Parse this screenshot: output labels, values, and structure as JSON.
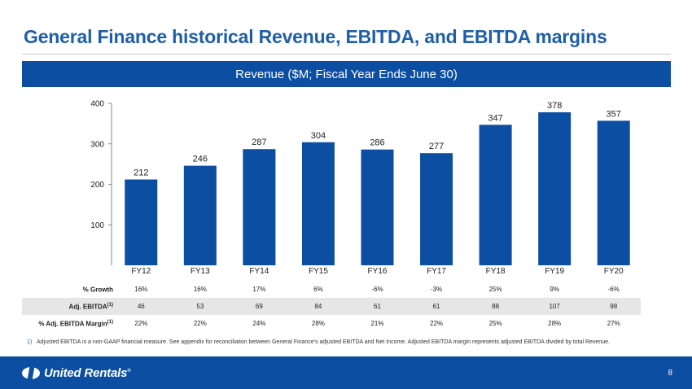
{
  "page": {
    "title": "General Finance historical Revenue, EBITDA, and EBITDA margins",
    "page_number": "8"
  },
  "banner": {
    "text": "Revenue ($M; Fiscal Year Ends June 30)"
  },
  "chart_data": {
    "type": "bar",
    "categories": [
      "FY12",
      "FY13",
      "FY14",
      "FY15",
      "FY16",
      "FY17",
      "FY18",
      "FY19",
      "FY20"
    ],
    "values": [
      212,
      246,
      287,
      304,
      286,
      277,
      347,
      378,
      357
    ],
    "data_labels": [
      "212",
      "246",
      "287",
      "304",
      "286",
      "277",
      "347",
      "378",
      "357"
    ],
    "yticks": [
      100,
      200,
      300,
      400
    ],
    "ylim": [
      0,
      400
    ],
    "bar_color": "#0b4ea2",
    "grid": false
  },
  "stats": [
    {
      "label": "% Growth",
      "sup": "",
      "values": [
        "16%",
        "16%",
        "17%",
        "6%",
        "-6%",
        "-3%",
        "25%",
        "9%",
        "-6%"
      ]
    },
    {
      "label": "Adj. EBITDA",
      "sup": "(1)",
      "values": [
        "46",
        "53",
        "69",
        "84",
        "61",
        "61",
        "88",
        "107",
        "98"
      ]
    },
    {
      "label": "% Adj. EBITDA Margin",
      "sup": "(1)",
      "values": [
        "22%",
        "22%",
        "24%",
        "28%",
        "21%",
        "22%",
        "25%",
        "28%",
        "27%"
      ]
    }
  ],
  "footnote": {
    "number": "1)",
    "text": "Adjusted EBITDA is a non-GAAP financial measure. See appendix for reconciliation between General Finance's adjusted EBITDA and Net Income. Adjusted EBITDA margin represents adjusted EBITDA divided by total Revenue."
  },
  "logo": {
    "text": "United Rentals",
    "mark": "®",
    "icon": "united-rentals-logo-icon"
  },
  "colors": {
    "brand": "#0b4ea2",
    "title": "#1f5fa8"
  }
}
